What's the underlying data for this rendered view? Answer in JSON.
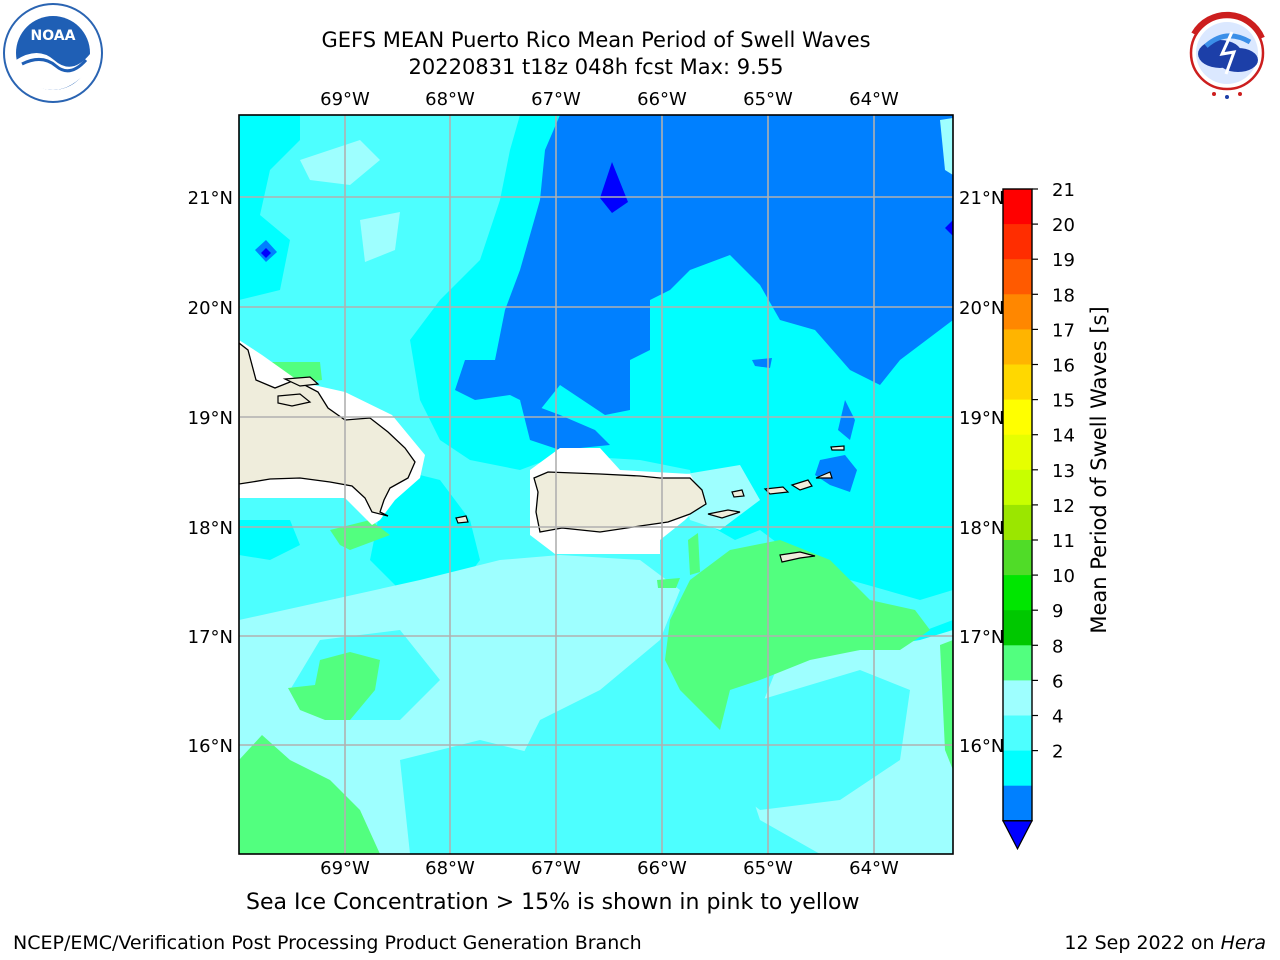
{
  "title": {
    "line1": "GEFS MEAN Puerto Rico Mean Period of Swell Waves",
    "line2": "20220831 t18z 048h fcst   Max: 9.55"
  },
  "logos": {
    "left_name": "NOAA",
    "left_ring_text": "NATIONAL OCEANIC AND ATMOSPHERIC ADMINISTRATION · U.S. DEPARTMENT OF COMMERCE",
    "right_ring_text": "NATIONAL WEATHER SERVICE"
  },
  "map": {
    "lon_labels": [
      "69°W",
      "68°W",
      "67°W",
      "66°W",
      "65°W",
      "64°W"
    ],
    "lat_labels": [
      "21°N",
      "20°N",
      "19°N",
      "18°N",
      "17°N",
      "16°N"
    ],
    "gridlines": true,
    "land_color": "#efeddc",
    "coastline_color": "#000000",
    "grid_color": "#b0b0b0"
  },
  "colorbar": {
    "label": "Mean Period of Swell Waves [s]",
    "ticks": [
      "21",
      "20",
      "19",
      "18",
      "17",
      "16",
      "15",
      "14",
      "13",
      "12",
      "11",
      "10",
      "9",
      "8",
      "6",
      "4",
      "2"
    ],
    "colors": [
      "#ff0000",
      "#ff2d00",
      "#ff5a00",
      "#ff8700",
      "#ffb400",
      "#ffd800",
      "#ffff00",
      "#e6ff00",
      "#c8ff00",
      "#9be600",
      "#50dc28",
      "#00e600",
      "#00c800",
      "#52ff7f",
      "#9effff",
      "#4dffff",
      "#00ffff",
      "#0080ff",
      "#0000ff"
    ],
    "extend_min": true
  },
  "footer": {
    "note": "Sea Ice Concentration > 15% is shown in pink to yellow",
    "credit_left": "NCEP/EMC/Verification Post Processing Product Generation Branch",
    "credit_right_date": "12 Sep 2022 on ",
    "credit_right_host": "Hera"
  }
}
